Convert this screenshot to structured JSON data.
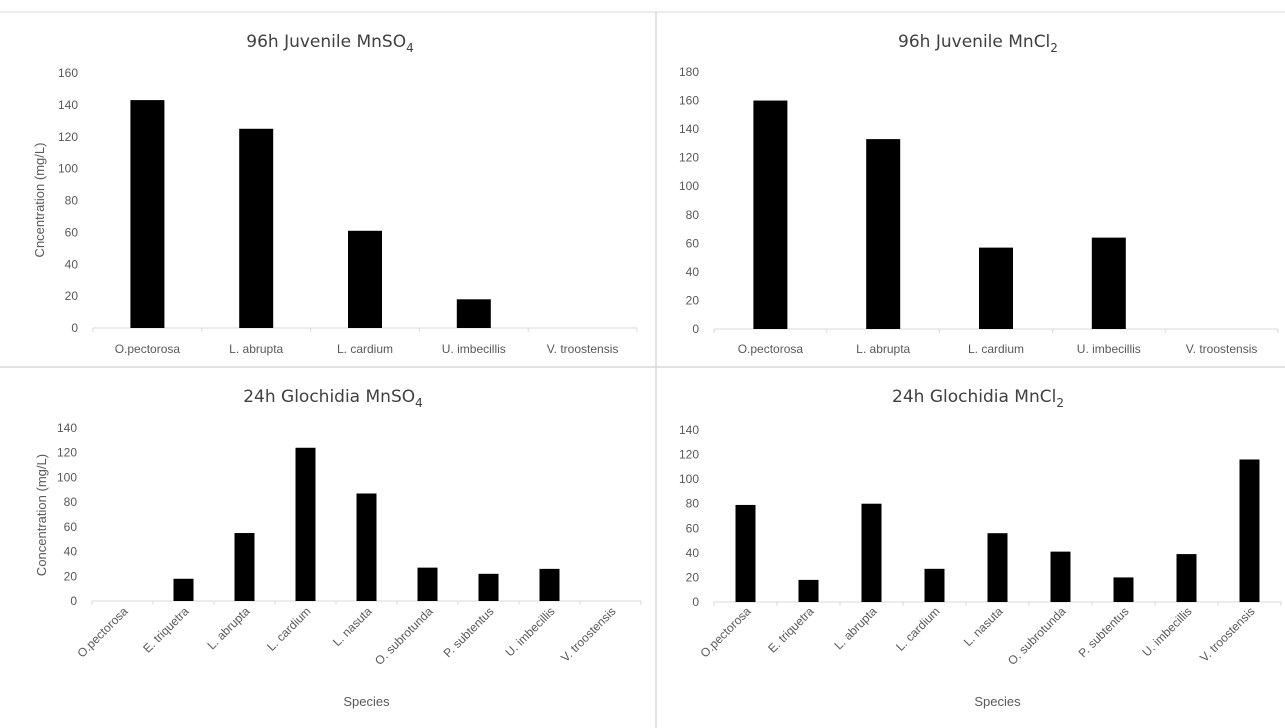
{
  "chart_data": [
    {
      "type": "bar",
      "title": "96h Juvenile MnSO",
      "title_sub": "4",
      "xlabel": "",
      "ylabel": "Cncentration (mg/L)",
      "ylim": [
        0,
        160
      ],
      "yticks": [
        0,
        20,
        40,
        60,
        80,
        100,
        120,
        140,
        160
      ],
      "categories": [
        "O.pectorosa",
        "L. abrupta",
        "L. cardium",
        "U. imbecillis",
        "V. troostensis"
      ],
      "values": [
        143,
        125,
        61,
        18,
        0
      ],
      "bar_color": "#000000",
      "grid": false,
      "legend": "none"
    },
    {
      "type": "bar",
      "title": "96h Juvenile MnCl",
      "title_sub": "2",
      "xlabel": "",
      "ylabel": "",
      "ylim": [
        0,
        180
      ],
      "yticks": [
        0,
        20,
        40,
        60,
        80,
        100,
        120,
        140,
        160,
        180
      ],
      "categories": [
        "O.pectorosa",
        "L. abrupta",
        "L. cardium",
        "U. imbecillis",
        "V. troostensis"
      ],
      "values": [
        160,
        133,
        57,
        64,
        0
      ],
      "bar_color": "#000000",
      "grid": false,
      "legend": "none"
    },
    {
      "type": "bar",
      "title": "24h Glochidia MnSO",
      "title_sub": "4",
      "xlabel": "Species",
      "ylabel": "Concentration (mg/L)",
      "ylim": [
        0,
        140
      ],
      "yticks": [
        0,
        20,
        40,
        60,
        80,
        100,
        120,
        140
      ],
      "categories": [
        "O.pectorosa",
        "E. triquetra",
        "L. abrupta",
        "L. cardium",
        "L. nasuta",
        "O. subrotunda",
        "P. subtentus",
        "U. imbecillis",
        "V. troostensis"
      ],
      "values": [
        0,
        18,
        55,
        124,
        87,
        27,
        22,
        26,
        0
      ],
      "bar_color": "#000000",
      "grid": false,
      "legend": "none"
    },
    {
      "type": "bar",
      "title": "24h Glochidia MnCl",
      "title_sub": "2",
      "xlabel": "Species",
      "ylabel": "",
      "ylim": [
        0,
        140
      ],
      "yticks": [
        0,
        20,
        40,
        60,
        80,
        100,
        120,
        140
      ],
      "categories": [
        "O.pectorosa",
        "E. triquetra",
        "L. abrupta",
        "L. cardium",
        "L. nasuta",
        "O. subrotunda",
        "P. subtentus",
        "U. imbecillis",
        "V. troostensis"
      ],
      "values": [
        79,
        18,
        80,
        27,
        56,
        41,
        20,
        39,
        116
      ],
      "bar_color": "#000000",
      "grid": false,
      "legend": "none"
    }
  ]
}
